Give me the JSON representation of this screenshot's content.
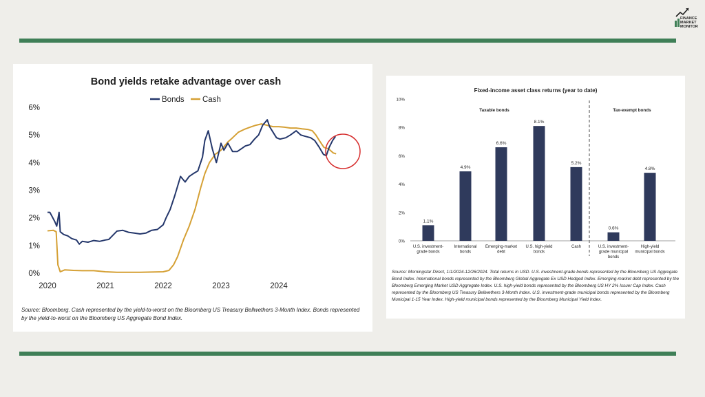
{
  "colors": {
    "background": "#efeeea",
    "rule": "#3f7f57",
    "bonds": "#24376b",
    "cash": "#d5a034",
    "highlight_circle": "#d62d2d",
    "bar": "#2f3a5c"
  },
  "logo": {
    "name": "Finance Market Monitor logo",
    "line1": "FINANCE",
    "line2": "MARKET",
    "line3": "MONITOR"
  },
  "chart_data": [
    {
      "type": "line",
      "title": "Bond yields retake advantage over cash",
      "legend_position": "top",
      "grid": false,
      "x_ticks": [
        "2020",
        "2021",
        "2022",
        "2023",
        "2024"
      ],
      "xlim": [
        2020.0,
        2025.0
      ],
      "y_ticks": [
        "0%",
        "1%",
        "2%",
        "3%",
        "4%",
        "5%",
        "6%"
      ],
      "ylim": [
        0,
        6
      ],
      "series": [
        {
          "name": "Bonds",
          "color": "#24376b",
          "points": [
            [
              2020.0,
              2.2
            ],
            [
              2020.04,
              2.2
            ],
            [
              2020.08,
              2.05
            ],
            [
              2020.13,
              1.85
            ],
            [
              2020.16,
              1.7
            ],
            [
              2020.2,
              2.2
            ],
            [
              2020.22,
              1.5
            ],
            [
              2020.28,
              1.4
            ],
            [
              2020.35,
              1.35
            ],
            [
              2020.42,
              1.25
            ],
            [
              2020.5,
              1.2
            ],
            [
              2020.55,
              1.05
            ],
            [
              2020.6,
              1.15
            ],
            [
              2020.7,
              1.12
            ],
            [
              2020.8,
              1.18
            ],
            [
              2020.9,
              1.15
            ],
            [
              2021.0,
              1.2
            ],
            [
              2021.06,
              1.22
            ],
            [
              2021.12,
              1.35
            ],
            [
              2021.2,
              1.52
            ],
            [
              2021.3,
              1.55
            ],
            [
              2021.4,
              1.48
            ],
            [
              2021.5,
              1.45
            ],
            [
              2021.6,
              1.42
            ],
            [
              2021.7,
              1.45
            ],
            [
              2021.8,
              1.55
            ],
            [
              2021.9,
              1.58
            ],
            [
              2022.0,
              1.75
            ],
            [
              2022.05,
              2.0
            ],
            [
              2022.12,
              2.3
            ],
            [
              2022.2,
              2.8
            ],
            [
              2022.3,
              3.5
            ],
            [
              2022.38,
              3.3
            ],
            [
              2022.45,
              3.5
            ],
            [
              2022.52,
              3.6
            ],
            [
              2022.6,
              3.7
            ],
            [
              2022.68,
              4.2
            ],
            [
              2022.72,
              4.8
            ],
            [
              2022.78,
              5.15
            ],
            [
              2022.85,
              4.5
            ],
            [
              2022.92,
              4.0
            ],
            [
              2023.0,
              4.7
            ],
            [
              2023.05,
              4.45
            ],
            [
              2023.12,
              4.7
            ],
            [
              2023.2,
              4.4
            ],
            [
              2023.28,
              4.4
            ],
            [
              2023.35,
              4.5
            ],
            [
              2023.42,
              4.6
            ],
            [
              2023.5,
              4.65
            ],
            [
              2023.58,
              4.85
            ],
            [
              2023.65,
              5.0
            ],
            [
              2023.72,
              5.35
            ],
            [
              2023.8,
              5.55
            ],
            [
              2023.84,
              5.3
            ],
            [
              2023.9,
              5.1
            ],
            [
              2023.96,
              4.9
            ],
            [
              2024.02,
              4.85
            ],
            [
              2024.12,
              4.9
            ],
            [
              2024.2,
              5.0
            ],
            [
              2024.3,
              5.15
            ],
            [
              2024.38,
              5.0
            ],
            [
              2024.46,
              4.95
            ],
            [
              2024.55,
              4.9
            ],
            [
              2024.62,
              4.8
            ],
            [
              2024.7,
              4.55
            ],
            [
              2024.77,
              4.3
            ],
            [
              2024.82,
              4.25
            ],
            [
              2024.87,
              4.55
            ],
            [
              2024.93,
              4.8
            ],
            [
              2024.98,
              4.95
            ]
          ]
        },
        {
          "name": "Cash",
          "color": "#d5a034",
          "points": [
            [
              2020.0,
              1.53
            ],
            [
              2020.1,
              1.55
            ],
            [
              2020.15,
              1.5
            ],
            [
              2020.18,
              0.3
            ],
            [
              2020.22,
              0.05
            ],
            [
              2020.3,
              0.12
            ],
            [
              2020.45,
              0.1
            ],
            [
              2020.6,
              0.09
            ],
            [
              2020.8,
              0.09
            ],
            [
              2021.0,
              0.05
            ],
            [
              2021.2,
              0.03
            ],
            [
              2021.4,
              0.03
            ],
            [
              2021.6,
              0.03
            ],
            [
              2021.8,
              0.04
            ],
            [
              2022.0,
              0.05
            ],
            [
              2022.1,
              0.1
            ],
            [
              2022.18,
              0.3
            ],
            [
              2022.25,
              0.6
            ],
            [
              2022.35,
              1.2
            ],
            [
              2022.45,
              1.7
            ],
            [
              2022.55,
              2.3
            ],
            [
              2022.65,
              3.1
            ],
            [
              2022.72,
              3.6
            ],
            [
              2022.8,
              4.0
            ],
            [
              2022.9,
              4.3
            ],
            [
              2023.0,
              4.45
            ],
            [
              2023.08,
              4.65
            ],
            [
              2023.12,
              4.75
            ],
            [
              2023.2,
              4.9
            ],
            [
              2023.3,
              5.1
            ],
            [
              2023.4,
              5.2
            ],
            [
              2023.5,
              5.28
            ],
            [
              2023.6,
              5.35
            ],
            [
              2023.7,
              5.4
            ],
            [
              2023.8,
              5.35
            ],
            [
              2023.9,
              5.3
            ],
            [
              2024.0,
              5.3
            ],
            [
              2024.1,
              5.28
            ],
            [
              2024.2,
              5.25
            ],
            [
              2024.3,
              5.25
            ],
            [
              2024.4,
              5.22
            ],
            [
              2024.5,
              5.2
            ],
            [
              2024.58,
              5.15
            ],
            [
              2024.64,
              5.0
            ],
            [
              2024.7,
              4.8
            ],
            [
              2024.78,
              4.55
            ],
            [
              2024.86,
              4.5
            ],
            [
              2024.94,
              4.35
            ],
            [
              2024.99,
              4.32
            ]
          ]
        }
      ],
      "annotation": "circle highlighting late 2024 crossover",
      "source": "Source: Bloomberg. Cash represented by the yield-to-worst on the Bloomberg US Treasury Bellwethers 3-Month Index. Bonds represented by the yield-to-worst on the Bloomberg US Aggregate Bond Index."
    },
    {
      "type": "bar",
      "title": "Fixed-income asset class returns (year to date)",
      "grid": false,
      "y_ticks": [
        "0%",
        "2%",
        "4%",
        "6%",
        "8%",
        "10%"
      ],
      "ylim": [
        0,
        10
      ],
      "groups": [
        {
          "label": "Taxable bonds",
          "categories": [
            0,
            1,
            2,
            3,
            4
          ]
        },
        {
          "label": "Tax-exempt bonds",
          "categories": [
            5,
            6
          ]
        }
      ],
      "categories": [
        [
          "U.S. investment-",
          "grade bonds"
        ],
        [
          "International",
          "bonds"
        ],
        [
          "Emerging-market",
          "debt"
        ],
        [
          "U.S. high-yield",
          "bonds"
        ],
        [
          "Cash"
        ],
        [
          "U.S. investment-",
          "grade municipal",
          "bonds"
        ],
        [
          "High-yield",
          "municipal bonds"
        ]
      ],
      "values": [
        1.1,
        4.9,
        6.6,
        8.1,
        5.2,
        0.6,
        4.8
      ],
      "data_labels": [
        "1.1%",
        "4.9%",
        "6.6%",
        "8.1%",
        "5.2%",
        "0.6%",
        "4.8%"
      ],
      "source": "Source: Morningstar Direct, 1/1/2024-12/26/2024. Total returns in USD. U.S. investment-grade bonds represented by the Bloomberg US Aggregate Bond Index. International bonds represented by the Bloomberg Global Aggregate Ex USD Hedged Index. Emerging-market debt represented by the Bloomberg Emerging Market USD Aggregate Index. U.S. high-yield bonds represented by the Bloomberg US HY 2% Issuer Cap Index. Cash represented by the Bloomberg US Treasury Bellwethers 3-Month Index. U.S. investment-grade municipal bonds represented by the Bloomberg Municipal 1-15 Year Index. High-yield municipal bonds represented by the Bloomberg Municipal Yield Index."
    }
  ]
}
